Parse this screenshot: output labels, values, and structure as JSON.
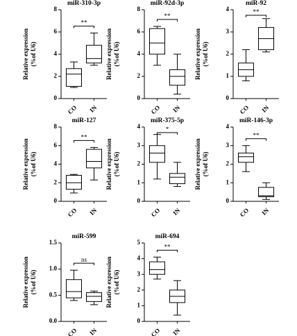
{
  "chart_data": [
    {
      "type": "box",
      "title": "miR-310-3p",
      "ylabel": [
        "Relative expression",
        "(%of U6)"
      ],
      "categories": [
        "CO",
        "IN"
      ],
      "stats": [
        {
          "min": 1.0,
          "q1": 1.1,
          "median": 2.2,
          "q3": 2.7,
          "max": 3.3
        },
        {
          "min": 3.0,
          "q1": 3.2,
          "median": 3.6,
          "q3": 4.8,
          "max": 5.9
        }
      ],
      "ylim": [
        0,
        8
      ],
      "yticks": [
        0,
        2,
        4,
        6,
        8
      ],
      "annotation": "**"
    },
    {
      "type": "box",
      "title": "miR-92d-3p",
      "ylabel": [
        "Relative expression",
        "(%of U6)"
      ],
      "categories": [
        "CO",
        "IN"
      ],
      "stats": [
        {
          "min": 3.0,
          "q1": 4.0,
          "median": 5.0,
          "q3": 6.3,
          "max": 6.5
        },
        {
          "min": 0.4,
          "q1": 1.2,
          "median": 2.0,
          "q3": 2.6,
          "max": 4.0
        }
      ],
      "ylim": [
        0,
        8
      ],
      "yticks": [
        0,
        2,
        4,
        6,
        8
      ],
      "annotation": "**"
    },
    {
      "type": "box",
      "title": "miR-92",
      "ylabel": [
        "Relative expression",
        "(%of U6)"
      ],
      "categories": [
        "CO",
        "IN"
      ],
      "stats": [
        {
          "min": 0.8,
          "q1": 1.0,
          "median": 1.3,
          "q3": 1.6,
          "max": 2.2
        },
        {
          "min": 2.1,
          "q1": 2.2,
          "median": 2.7,
          "q3": 3.2,
          "max": 3.6
        }
      ],
      "ylim": [
        0,
        4
      ],
      "yticks": [
        0,
        1,
        2,
        3,
        4
      ],
      "annotation": "**"
    },
    {
      "type": "box",
      "title": "miR-127",
      "ylabel": [
        "Relative expression",
        "(%of U6)"
      ],
      "categories": [
        "CO",
        "IN"
      ],
      "stats": [
        {
          "min": 0.9,
          "q1": 1.3,
          "median": 2.0,
          "q3": 2.8,
          "max": 2.9
        },
        {
          "min": 2.3,
          "q1": 3.6,
          "median": 4.3,
          "q3": 5.6,
          "max": 5.8
        }
      ],
      "ylim": [
        0,
        8
      ],
      "yticks": [
        0,
        2,
        4,
        6,
        8
      ],
      "annotation": "**"
    },
    {
      "type": "box",
      "title": "miR-375-5p",
      "ylabel": [
        "Relative expression",
        "(%of U6)"
      ],
      "categories": [
        "CO",
        "IN"
      ],
      "stats": [
        {
          "min": 1.2,
          "q1": 2.1,
          "median": 2.6,
          "q3": 3.0,
          "max": 3.6
        },
        {
          "min": 0.8,
          "q1": 0.95,
          "median": 1.3,
          "q3": 1.5,
          "max": 2.1
        }
      ],
      "ylim": [
        0,
        4
      ],
      "yticks": [
        0,
        1,
        2,
        3,
        4
      ],
      "annotation": "*"
    },
    {
      "type": "box",
      "title": "miR-146-3p",
      "ylabel": [
        "Relative expression",
        "(%of U6)"
      ],
      "categories": [
        "CO",
        "IN"
      ],
      "stats": [
        {
          "min": 1.6,
          "q1": 2.1,
          "median": 2.4,
          "q3": 2.6,
          "max": 3.0
        },
        {
          "min": 0.1,
          "q1": 0.25,
          "median": 0.3,
          "q3": 0.75,
          "max": 1.0
        }
      ],
      "ylim": [
        0,
        4
      ],
      "yticks": [
        0,
        1,
        2,
        3,
        4
      ],
      "annotation": "**"
    },
    {
      "type": "box",
      "title": "miR-599",
      "ylabel": [
        "Relative expression",
        "(%of U6)"
      ],
      "categories": [
        "CO",
        "IN"
      ],
      "stats": [
        {
          "min": 0.4,
          "q1": 0.45,
          "median": 0.57,
          "q3": 0.8,
          "max": 0.98
        },
        {
          "min": 0.32,
          "q1": 0.38,
          "median": 0.48,
          "q3": 0.55,
          "max": 0.58
        }
      ],
      "ylim": [
        0,
        1.5
      ],
      "yticks": [
        {
          "value": 0,
          "label": "0.0"
        },
        {
          "value": 0.5,
          "label": "0.5"
        },
        {
          "value": 1,
          "label": "1.0"
        },
        {
          "value": 1.5,
          "label": "1.5"
        }
      ],
      "annotation": "ns"
    },
    {
      "type": "box",
      "title": "miR-694",
      "ylabel": [
        "Relative expression",
        "(%of U6)"
      ],
      "categories": [
        "CO",
        "IN"
      ],
      "stats": [
        {
          "min": 2.7,
          "q1": 3.0,
          "median": 3.3,
          "q3": 3.8,
          "max": 4.1
        },
        {
          "min": 0.4,
          "q1": 1.2,
          "median": 1.6,
          "q3": 2.0,
          "max": 2.6
        }
      ],
      "ylim": [
        0,
        5
      ],
      "yticks": [
        0,
        1,
        2,
        3,
        4,
        5
      ],
      "annotation": "**"
    }
  ]
}
